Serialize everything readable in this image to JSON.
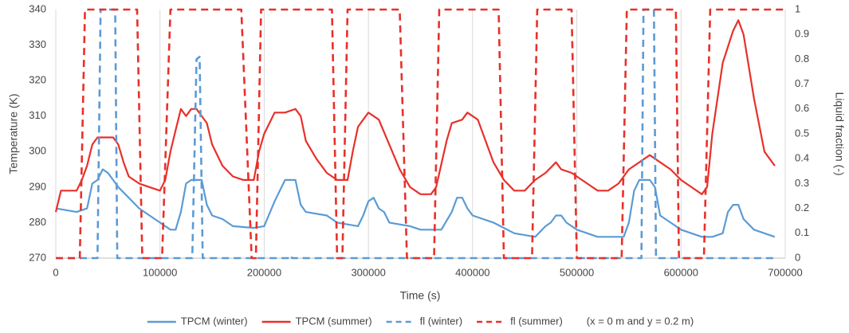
{
  "chart_data": {
    "type": "line",
    "xlabel": "Time (s)",
    "ylabel": "Temperature (K)",
    "y2label": "Liquid fraction (-)",
    "annotation": "(x = 0 m and y = 0.2 m)",
    "xlim": [
      0,
      700000
    ],
    "xticks": [
      0,
      100000,
      200000,
      300000,
      400000,
      500000,
      600000,
      700000
    ],
    "ylim": [
      270,
      340
    ],
    "yticks": [
      270,
      280,
      290,
      300,
      310,
      320,
      330,
      340
    ],
    "y2lim": [
      0,
      1
    ],
    "y2ticks": [
      0,
      0.1,
      0.2,
      0.3,
      0.4,
      0.5,
      0.6,
      0.7,
      0.8,
      0.9,
      1
    ],
    "grid": "x",
    "legend": "bottom",
    "series": [
      {
        "name": "TPCM (winter)",
        "color": "#5b9bd5",
        "linestyle": "solid",
        "x": [
          0,
          20000,
          30000,
          35000,
          40000,
          45000,
          50000,
          55000,
          60000,
          70000,
          80000,
          90000,
          100000,
          110000,
          115000,
          120000,
          125000,
          130000,
          140000,
          145000,
          150000,
          160000,
          170000,
          190000,
          200000,
          210000,
          220000,
          225000,
          230000,
          235000,
          240000,
          260000,
          270000,
          290000,
          295000,
          300000,
          305000,
          310000,
          315000,
          320000,
          340000,
          350000,
          370000,
          380000,
          385000,
          390000,
          395000,
          400000,
          420000,
          440000,
          460000,
          470000,
          475000,
          480000,
          485000,
          490000,
          500000,
          520000,
          545000,
          550000,
          555000,
          560000,
          570000,
          575000,
          580000,
          590000,
          600000,
          620000,
          630000,
          640000,
          645000,
          650000,
          655000,
          660000,
          670000,
          690000
        ],
        "values": [
          284,
          283,
          284,
          291,
          292,
          295,
          294,
          292,
          290,
          287,
          284,
          282,
          280,
          278,
          278,
          283,
          291,
          292,
          292,
          285,
          282,
          281,
          279,
          278.5,
          279,
          286,
          292,
          292,
          292,
          285,
          283,
          282,
          280,
          279,
          282,
          286,
          287,
          284,
          283,
          280,
          279,
          278,
          278,
          283,
          287,
          287,
          284,
          282,
          280,
          277,
          276,
          279,
          280,
          282,
          282,
          280,
          278,
          276,
          276,
          280,
          289,
          292,
          292,
          290,
          282,
          280,
          278,
          276,
          276,
          277,
          283,
          285,
          285,
          281,
          278,
          276
        ]
      },
      {
        "name": "TPCM (summer)",
        "color": "#e8302a",
        "linestyle": "solid",
        "x": [
          0,
          5000,
          20000,
          25000,
          30000,
          35000,
          40000,
          55000,
          60000,
          65000,
          70000,
          80000,
          90000,
          100000,
          105000,
          110000,
          115000,
          120000,
          125000,
          130000,
          135000,
          145000,
          150000,
          160000,
          170000,
          180000,
          190000,
          195000,
          200000,
          210000,
          220000,
          230000,
          235000,
          240000,
          250000,
          260000,
          270000,
          280000,
          285000,
          290000,
          300000,
          310000,
          320000,
          330000,
          340000,
          350000,
          360000,
          365000,
          375000,
          380000,
          390000,
          395000,
          405000,
          410000,
          420000,
          430000,
          440000,
          450000,
          460000,
          470000,
          480000,
          485000,
          495000,
          510000,
          520000,
          530000,
          540000,
          550000,
          560000,
          570000,
          580000,
          590000,
          600000,
          610000,
          620000,
          625000,
          630000,
          640000,
          650000,
          655000,
          660000,
          670000,
          680000,
          690000
        ],
        "values": [
          283,
          289,
          289,
          292,
          296,
          302,
          304,
          304,
          302,
          297,
          293,
          291,
          290,
          289,
          292,
          300,
          306,
          312,
          310,
          312,
          312,
          308,
          302,
          296,
          293,
          292,
          292,
          300,
          305,
          311,
          311,
          312,
          310,
          303,
          298,
          294,
          292,
          292,
          300,
          307,
          311,
          309,
          302,
          295,
          290,
          288,
          288,
          290,
          303,
          308,
          309,
          311,
          309,
          305,
          297,
          292,
          289,
          289,
          292,
          294,
          297,
          295,
          294,
          291,
          289,
          289,
          291,
          295,
          297,
          299,
          297,
          295,
          292,
          290,
          288,
          290,
          305,
          325,
          334,
          337,
          333,
          315,
          300,
          296
        ]
      },
      {
        "name": "fl (winter)",
        "color": "#5b9bd5",
        "linestyle": "dashed",
        "axis": "y2",
        "x": [
          0,
          40000,
          43000,
          57000,
          59000,
          131000,
          135000,
          138000,
          141000,
          224000,
          225000,
          227000,
          562000,
          564000,
          574000,
          576000,
          690000
        ],
        "values": [
          0,
          0,
          1,
          1,
          0,
          0,
          0.8,
          0.81,
          0,
          0,
          0.01,
          0,
          0,
          1,
          1,
          0,
          0
        ]
      },
      {
        "name": "fl (summer)",
        "color": "#e8302a",
        "linestyle": "dashed",
        "axis": "y2",
        "x": [
          0,
          23000,
          28000,
          78000,
          83000,
          102000,
          110000,
          178000,
          188000,
          192000,
          197000,
          265000,
          270000,
          275000,
          280000,
          330000,
          337000,
          363000,
          368000,
          425000,
          430000,
          457000,
          462000,
          495000,
          500000,
          543000,
          548000,
          595000,
          598000,
          622000,
          628000,
          700000
        ],
        "values": [
          0,
          0,
          1,
          1,
          0,
          0,
          1,
          1,
          0,
          0,
          1,
          1,
          0,
          0,
          1,
          1,
          0,
          0,
          1,
          1,
          0,
          0,
          1,
          1,
          0,
          0,
          1,
          1,
          0,
          0,
          1,
          1
        ]
      }
    ]
  }
}
